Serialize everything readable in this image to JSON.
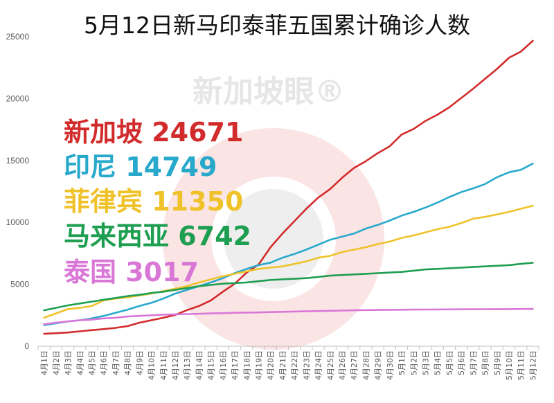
{
  "chart_data": {
    "type": "line",
    "title": "5月12日新马印泰菲五国累计确诊人数",
    "x": [
      "4月1日",
      "4月2日",
      "4月3日",
      "4月4日",
      "4月5日",
      "4月6日",
      "4月7日",
      "4月8日",
      "4月9日",
      "4月10日",
      "4月11日",
      "4月12日",
      "4月13日",
      "4月14日",
      "4月15日",
      "4月16日",
      "4月17日",
      "4月18日",
      "4月19日",
      "4月20日",
      "4月21日",
      "4月22日",
      "4月23日",
      "4月24日",
      "4月25日",
      "4月26日",
      "4月27日",
      "4月28日",
      "4月29日",
      "4月30日",
      "5月1日",
      "5月2日",
      "5月3日",
      "5月4日",
      "5月5日",
      "5月6日",
      "5月7日",
      "5月8日",
      "5月9日",
      "5月10日",
      "5月11日",
      "5月12日"
    ],
    "ylim": [
      0,
      25000
    ],
    "yticks": [
      0,
      5000,
      10000,
      15000,
      20000,
      25000
    ],
    "grid": false,
    "legend_position": "left",
    "series": [
      {
        "name": "新加坡",
        "label": "新加坡 24671",
        "color": "#d22b2b",
        "values": [
          1000,
          1050,
          1110,
          1200,
          1300,
          1380,
          1480,
          1620,
          1900,
          2100,
          2300,
          2530,
          2920,
          3250,
          3700,
          4400,
          5050,
          5950,
          6600,
          8000,
          9100,
          10100,
          11100,
          12000,
          12700,
          13600,
          14400,
          14950,
          15600,
          16150,
          17100,
          17550,
          18200,
          18700,
          19300,
          20050,
          20800,
          21600,
          22400,
          23300,
          23800,
          24671
        ]
      },
      {
        "name": "印尼",
        "label": "印尼 14749",
        "color": "#28a9cc",
        "values": [
          1700,
          1850,
          2000,
          2100,
          2250,
          2450,
          2700,
          2950,
          3250,
          3500,
          3850,
          4250,
          4550,
          4850,
          5150,
          5500,
          5900,
          6250,
          6550,
          6750,
          7150,
          7450,
          7800,
          8200,
          8600,
          8850,
          9100,
          9500,
          9800,
          10150,
          10550,
          10850,
          11200,
          11600,
          12050,
          12450,
          12750,
          13100,
          13650,
          14050,
          14250,
          14749
        ]
      },
      {
        "name": "菲律宾",
        "label": "菲律宾 11350",
        "color": "#efc22a",
        "values": [
          2300,
          2650,
          3000,
          3100,
          3250,
          3700,
          3850,
          3950,
          4100,
          4250,
          4450,
          4650,
          4850,
          5150,
          5400,
          5650,
          5850,
          6050,
          6250,
          6350,
          6450,
          6650,
          6850,
          7150,
          7300,
          7600,
          7800,
          8000,
          8250,
          8450,
          8750,
          8950,
          9200,
          9450,
          9650,
          9950,
          10300,
          10450,
          10650,
          10850,
          11100,
          11350
        ]
      },
      {
        "name": "马来西亚",
        "label": "马来西亚 6742",
        "color": "#1e9e50",
        "values": [
          2900,
          3100,
          3300,
          3450,
          3600,
          3750,
          3900,
          4050,
          4150,
          4300,
          4400,
          4550,
          4700,
          4850,
          4950,
          5050,
          5100,
          5150,
          5250,
          5350,
          5400,
          5450,
          5500,
          5600,
          5700,
          5750,
          5800,
          5850,
          5900,
          5950,
          6000,
          6100,
          6200,
          6250,
          6300,
          6350,
          6400,
          6450,
          6500,
          6550,
          6650,
          6742
        ]
      },
      {
        "name": "泰国",
        "label": "泰国 3017",
        "color": "#d977d7",
        "values": [
          1780,
          1900,
          2000,
          2100,
          2150,
          2250,
          2300,
          2400,
          2450,
          2500,
          2550,
          2580,
          2600,
          2620,
          2650,
          2670,
          2700,
          2720,
          2730,
          2760,
          2780,
          2800,
          2820,
          2840,
          2860,
          2880,
          2900,
          2920,
          2930,
          2940,
          2950,
          2960,
          2965,
          2970,
          2975,
          2980,
          2985,
          2990,
          2995,
          3000,
          3010,
          3017
        ]
      }
    ]
  },
  "watermark": "新加坡眼®"
}
